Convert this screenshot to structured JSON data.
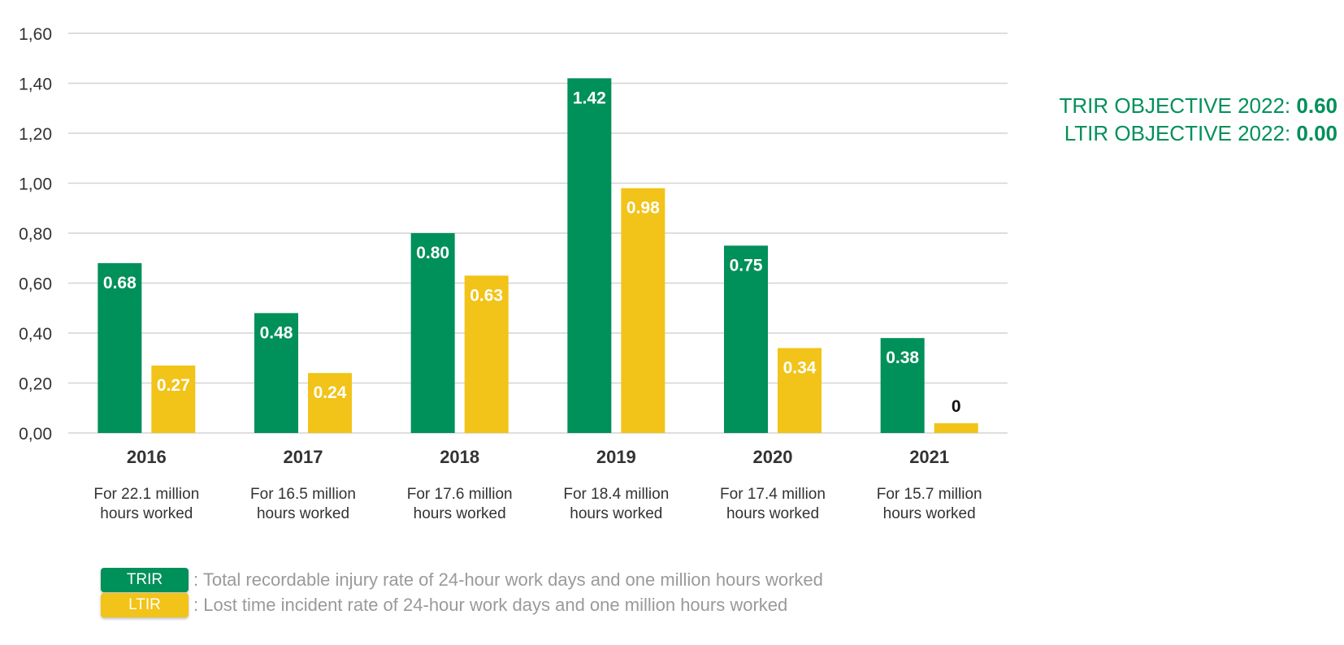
{
  "chart_data": {
    "type": "bar",
    "categories": [
      "2016",
      "2017",
      "2018",
      "2019",
      "2020",
      "2021"
    ],
    "subcategories": [
      "For 22.1 million hours worked",
      "For 16.5 million hours worked",
      "For 17.6 million hours worked",
      "For 18.4 million hours worked",
      "For 17.4 million hours worked",
      "For 15.7 million hours worked"
    ],
    "series": [
      {
        "name": "TRIR",
        "color": "#00905a",
        "values": [
          0.68,
          0.48,
          0.8,
          1.42,
          0.75,
          0.38
        ],
        "labels": [
          "0.68",
          "0.48",
          "0.80",
          "1.42",
          "0.75",
          "0.38"
        ]
      },
      {
        "name": "LTIR",
        "color": "#f2c318",
        "values": [
          0.27,
          0.24,
          0.63,
          0.98,
          0.34,
          0
        ],
        "labels": [
          "0.27",
          "0.24",
          "0.63",
          "0.98",
          "0.34",
          "0"
        ]
      }
    ],
    "yticks": [
      "0,00",
      "0,20",
      "0,40",
      "0,60",
      "0,80",
      "1,00",
      "1,20",
      "1,40",
      "1,60"
    ],
    "ylim": [
      0,
      1.6
    ],
    "grid": true,
    "legend_position": "bottom-left"
  },
  "objectives": [
    {
      "label": "TRIR OBJECTIVE 2022: ",
      "value": "0.60"
    },
    {
      "label": "LTIR OBJECTIVE 2022: ",
      "value": "0.00"
    }
  ],
  "legend": [
    {
      "label": "TRIR",
      "description": ": Total recordable injury rate of 24-hour work days and one million hours worked",
      "color": "#00905a"
    },
    {
      "label": "LTIR",
      "description": ": Lost time incident rate of 24-hour work days and one million hours worked",
      "color": "#f2c318"
    }
  ]
}
